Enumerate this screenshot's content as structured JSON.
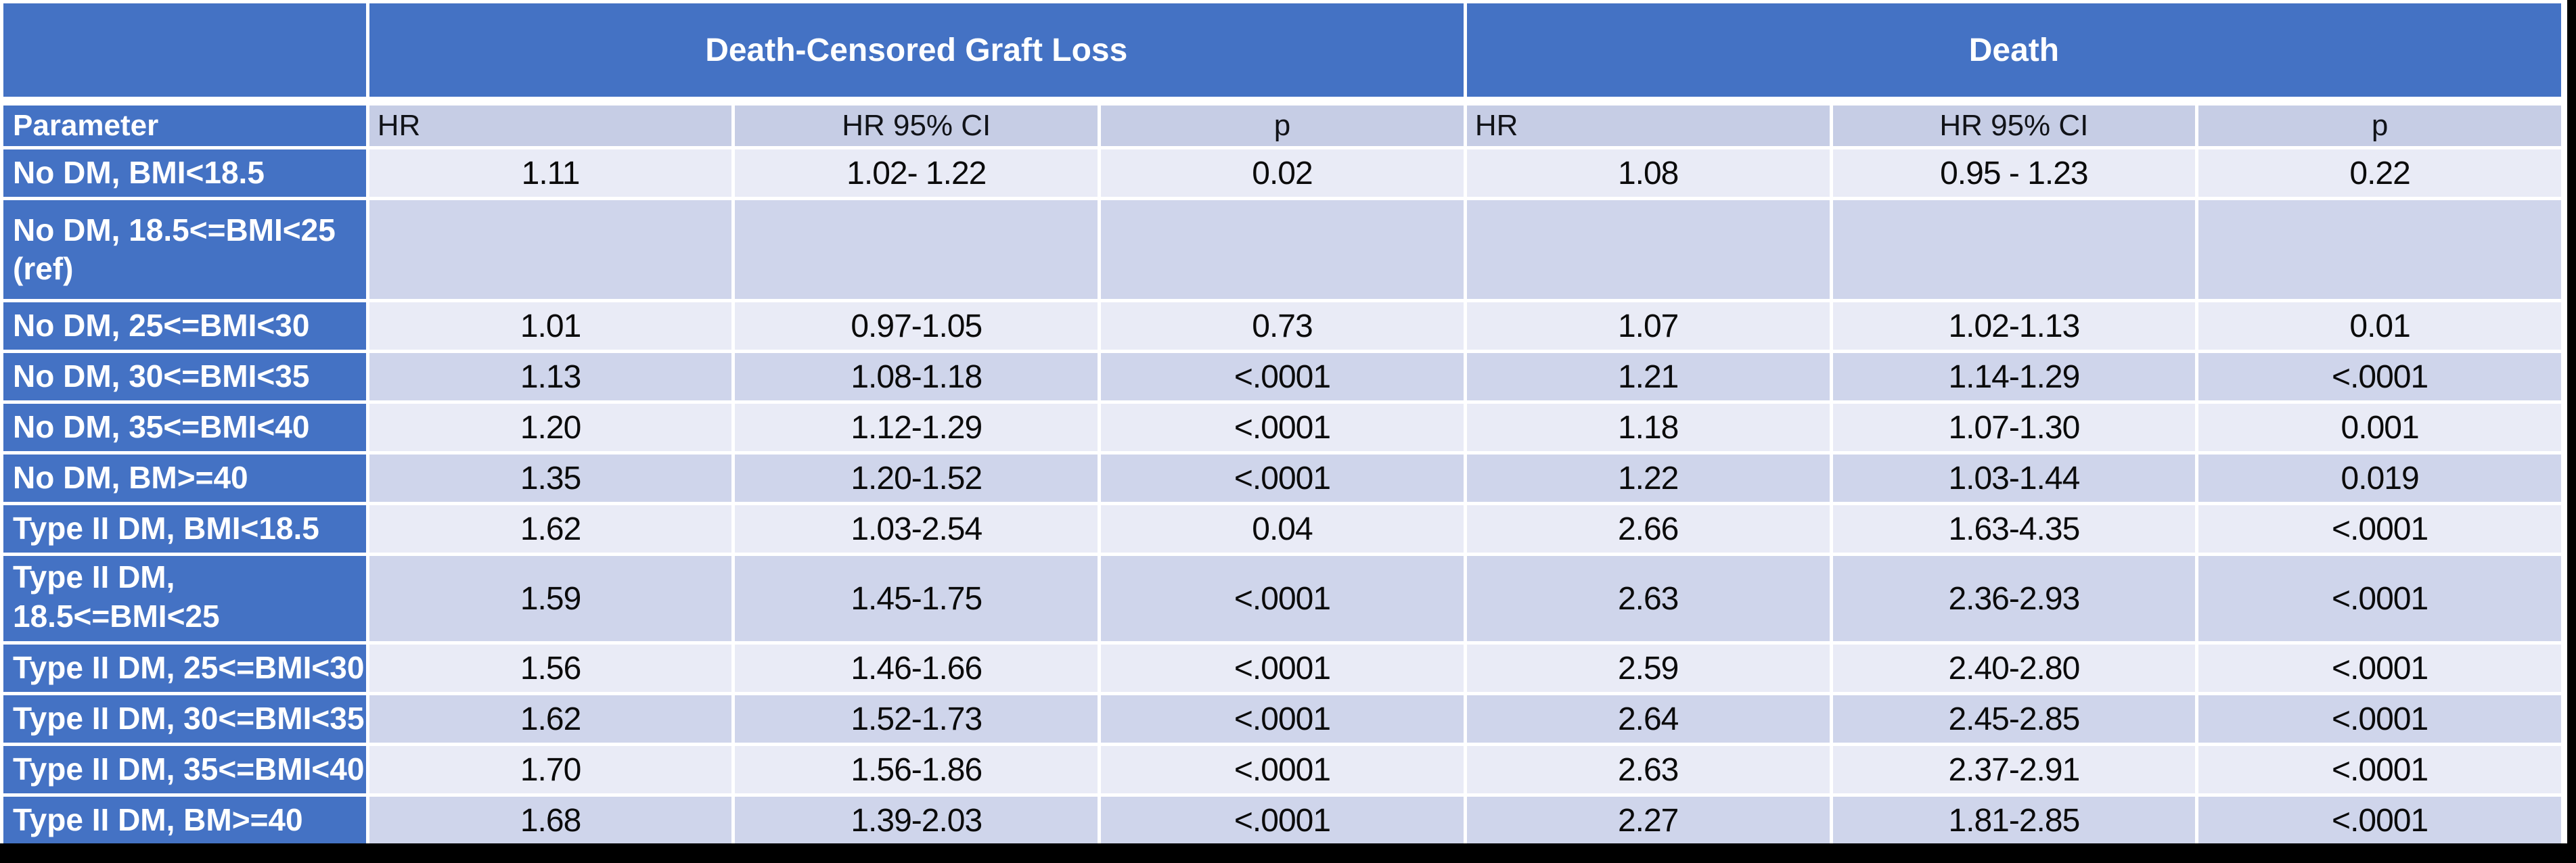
{
  "colors": {
    "header_blue": "#4472C4",
    "subheader_bg": "#C6CDE5",
    "band_dark": "#CFD5EB",
    "band_light": "#E9EBF6",
    "header_text": "#FFFFFF",
    "value_text": "#0B0B0B",
    "frame_black": "#000000"
  },
  "chart_data": {
    "type": "table",
    "group_headers": [
      {
        "label": "Death-Censored Graft Loss",
        "colspan": 3
      },
      {
        "label": "Death",
        "colspan": 3
      }
    ],
    "columns": [
      "Parameter",
      "HR",
      "HR 95% CI",
      "p",
      "HR",
      "HR 95% CI",
      "p"
    ],
    "rows": [
      {
        "param": "No DM, BMI<18.5",
        "param_line2": "",
        "values": [
          "1.11",
          "1.02- 1.22",
          "0.02",
          "1.08",
          "0.95 - 1.23",
          "0.22"
        ]
      },
      {
        "param": "No DM, 18.5<=BMI<25",
        "param_line2": "(ref)",
        "values": [
          "",
          "",
          "",
          "",
          "",
          ""
        ]
      },
      {
        "param": "No DM, 25<=BMI<30",
        "param_line2": "",
        "values": [
          "1.01",
          "0.97-1.05",
          "0.73",
          "1.07",
          "1.02-1.13",
          "0.01"
        ]
      },
      {
        "param": "No DM, 30<=BMI<35",
        "param_line2": "",
        "values": [
          "1.13",
          "1.08-1.18",
          "<.0001",
          "1.21",
          "1.14-1.29",
          "<.0001"
        ]
      },
      {
        "param": "No DM, 35<=BMI<40",
        "param_line2": "",
        "values": [
          "1.20",
          "1.12-1.29",
          "<.0001",
          "1.18",
          "1.07-1.30",
          "0.001"
        ]
      },
      {
        "param": "No DM, BM>=40",
        "param_line2": "",
        "values": [
          "1.35",
          "1.20-1.52",
          "<.0001",
          "1.22",
          "1.03-1.44",
          "0.019"
        ]
      },
      {
        "param": "Type II DM, BMI<18.5",
        "param_line2": "",
        "values": [
          "1.62",
          "1.03-2.54",
          "0.04",
          "2.66",
          "1.63-4.35",
          "<.0001"
        ]
      },
      {
        "param": "Type II DM, 18.5<=BMI<25",
        "param_line2": "",
        "values": [
          "1.59",
          "1.45-1.75",
          "<.0001",
          "2.63",
          "2.36-2.93",
          "<.0001"
        ]
      },
      {
        "param": "Type II DM, 25<=BMI<30",
        "param_line2": "",
        "values": [
          "1.56",
          "1.46-1.66",
          "<.0001",
          "2.59",
          "2.40-2.80",
          "<.0001"
        ]
      },
      {
        "param": "Type II DM, 30<=BMI<35",
        "param_line2": "",
        "values": [
          "1.62",
          "1.52-1.73",
          "<.0001",
          "2.64",
          "2.45-2.85",
          "<.0001"
        ]
      },
      {
        "param": "Type II DM, 35<=BMI<40",
        "param_line2": "",
        "values": [
          "1.70",
          "1.56-1.86",
          "<.0001",
          "2.63",
          "2.37-2.91",
          "<.0001"
        ]
      },
      {
        "param": "Type II DM, BM>=40",
        "param_line2": "",
        "values": [
          "1.68",
          "1.39-2.03",
          "<.0001",
          "2.27",
          "1.81-2.85",
          "<.0001"
        ]
      }
    ]
  }
}
